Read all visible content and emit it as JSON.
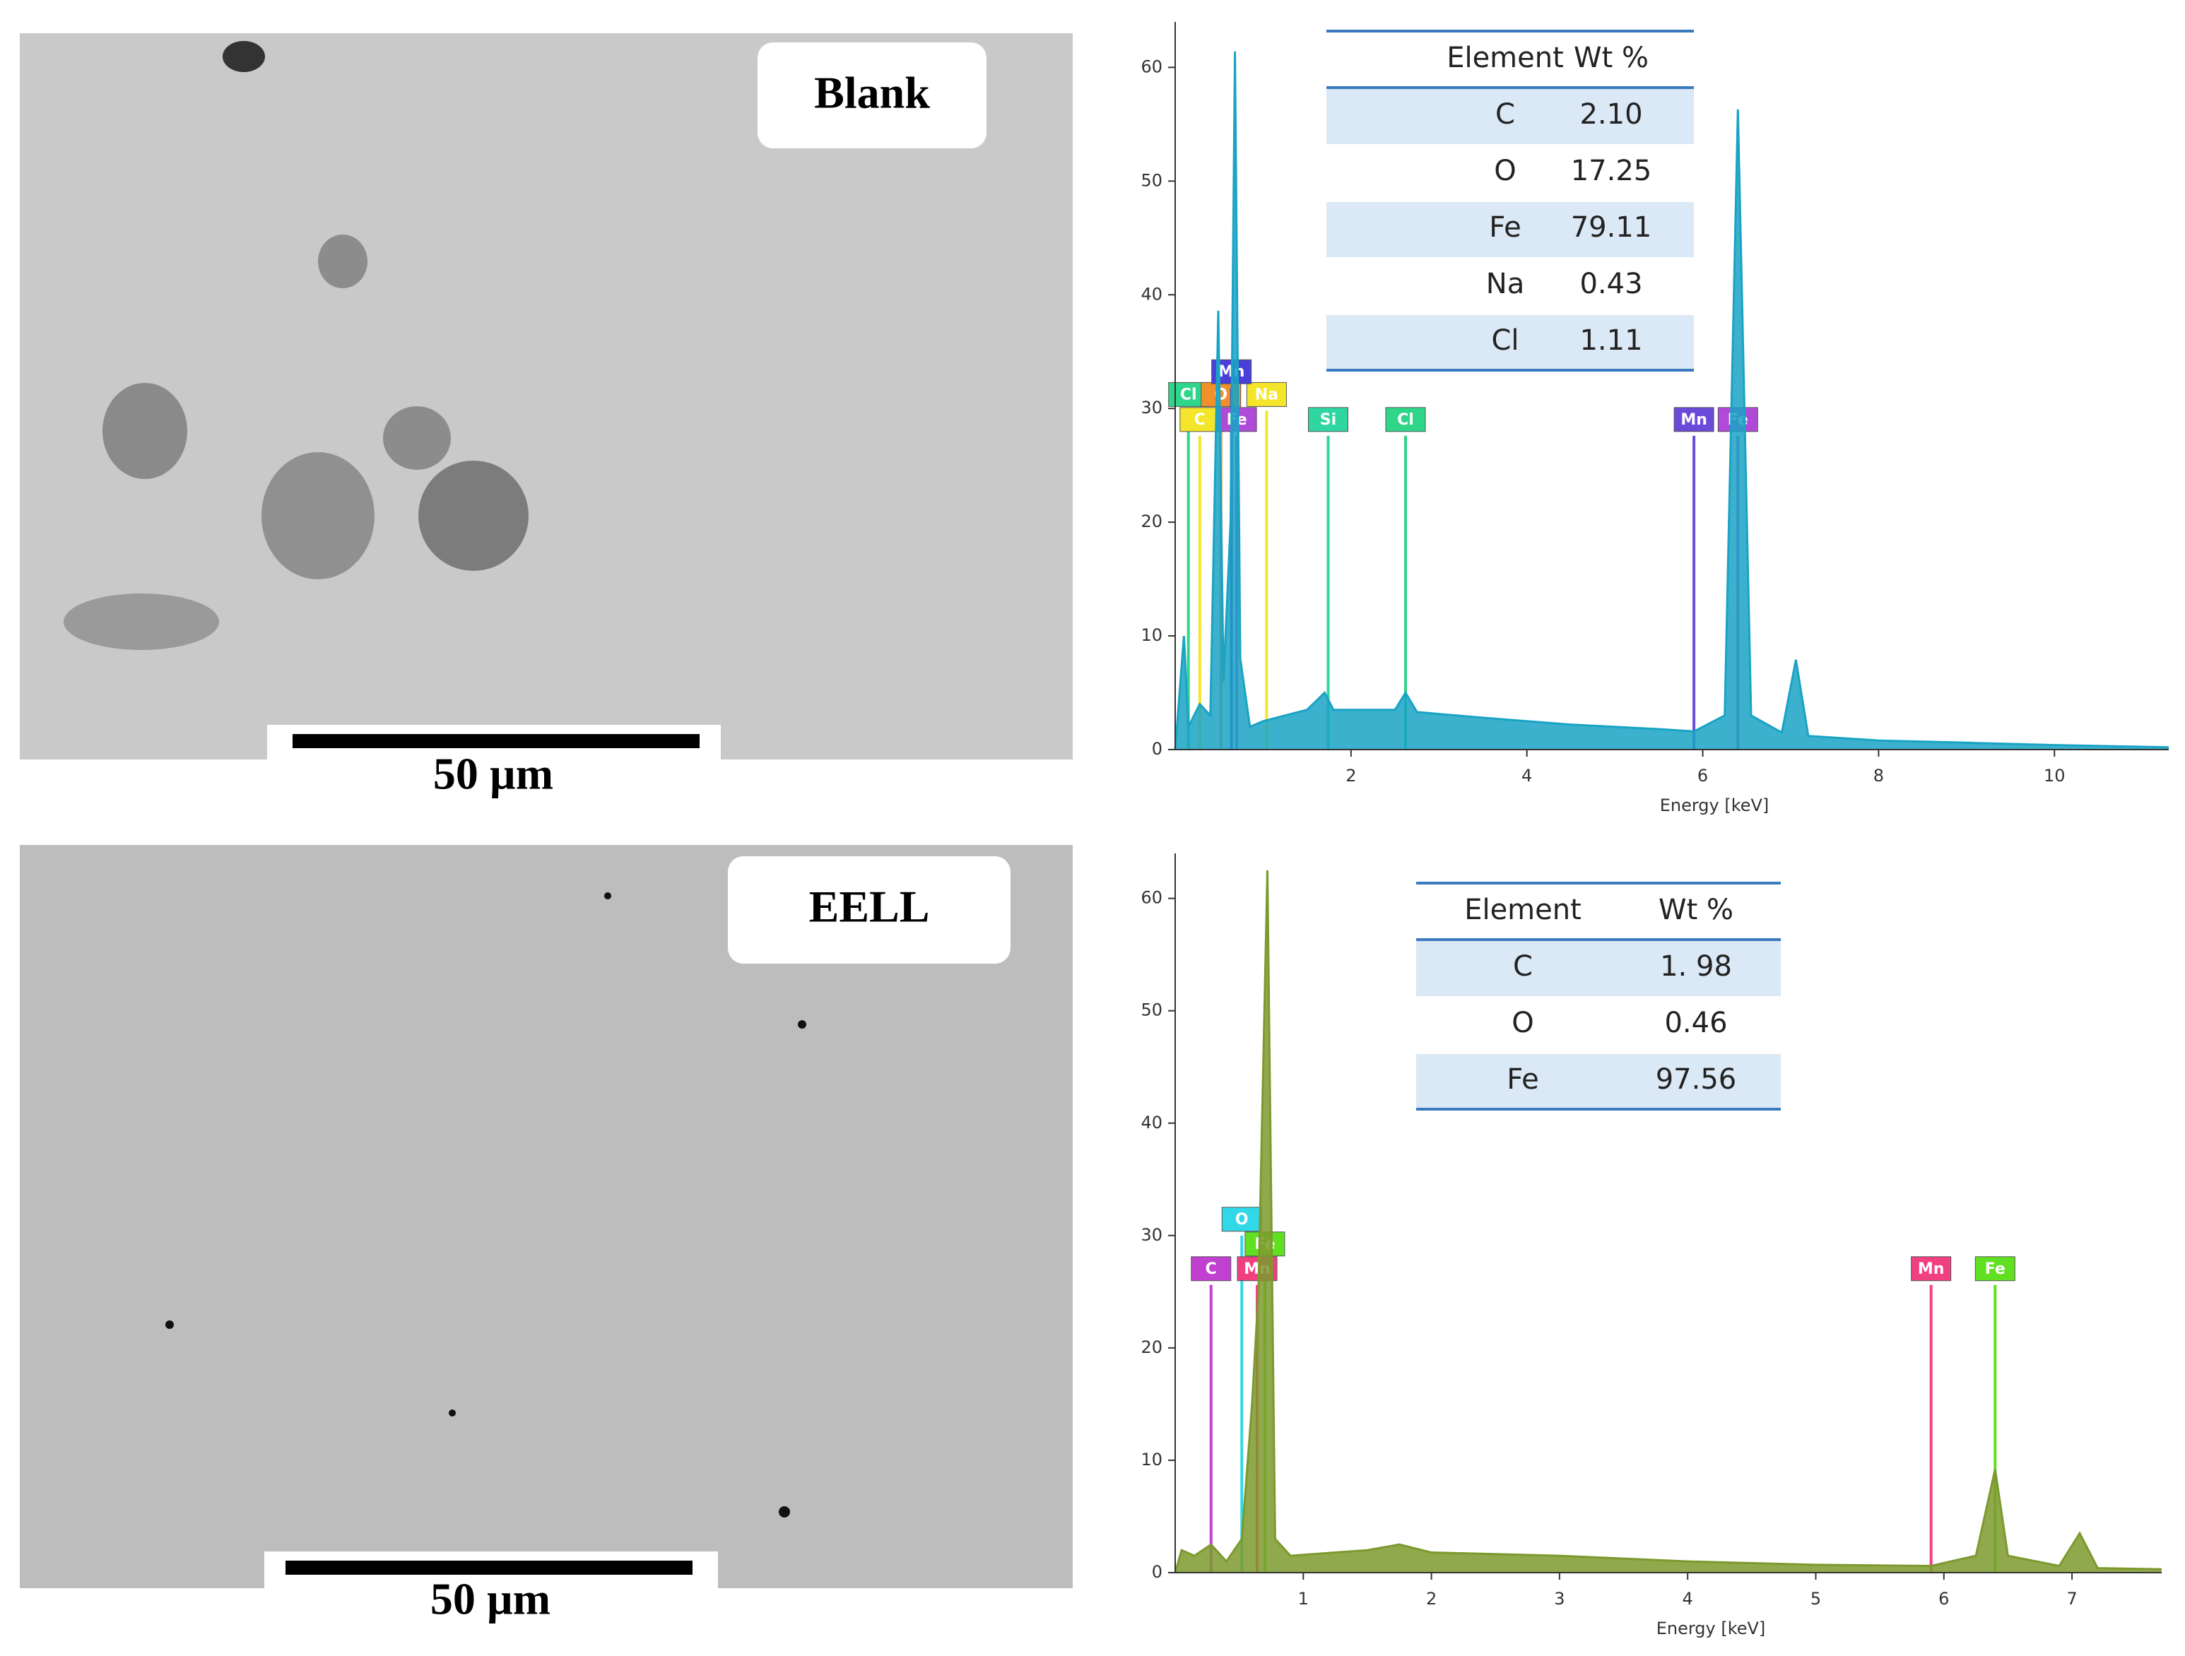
{
  "panels": [
    {
      "label": "Blank",
      "scale_bar": "50 µm"
    },
    {
      "label": "EELL",
      "scale_bar": "50 µm"
    }
  ],
  "chart_data": [
    {
      "type": "area",
      "xlabel": "Energy [keV]",
      "color": "#1aa3c4",
      "xlim": [
        0,
        11.3
      ],
      "xticks": [
        2,
        4,
        6,
        8,
        10
      ],
      "ylim": [
        0,
        64
      ],
      "yticks": [
        0,
        10,
        20,
        30,
        40,
        50,
        60
      ],
      "x": [
        0,
        0.1,
        0.15,
        0.28,
        0.4,
        0.49,
        0.55,
        0.63,
        0.68,
        0.74,
        0.85,
        1.0,
        1.5,
        1.7,
        1.8,
        2.5,
        2.62,
        2.75,
        3.5,
        4.5,
        5.5,
        5.9,
        6.25,
        6.4,
        6.55,
        6.9,
        7.06,
        7.2,
        8,
        9,
        10,
        11.3
      ],
      "values": [
        0,
        10,
        2,
        4,
        3,
        38.6,
        6,
        20,
        61.4,
        8,
        2,
        2.5,
        3.5,
        5,
        3.5,
        3.5,
        5,
        3.3,
        2.8,
        2.2,
        1.8,
        1.6,
        3,
        56.3,
        3,
        1.5,
        7.9,
        1.2,
        0.8,
        0.6,
        0.4,
        0.2
      ],
      "markers": [
        {
          "label": "Cl",
          "x": 0.15,
          "y": 29.8,
          "color": "#2fd68a"
        },
        {
          "label": "O",
          "x": 0.52,
          "y": 29.8,
          "color": "#f0902a"
        },
        {
          "label": "Na",
          "x": 1.04,
          "y": 29.8,
          "color": "#f5e52a"
        },
        {
          "label": "Mn",
          "x": 0.64,
          "y": 31.8,
          "color": "#4a3fd8"
        },
        {
          "label": "C",
          "x": 0.28,
          "y": 27.6,
          "color": "#f5e52a"
        },
        {
          "label": "Fe",
          "x": 0.7,
          "y": 27.6,
          "color": "#b04ad8"
        },
        {
          "label": "Si",
          "x": 1.74,
          "y": 27.6,
          "color": "#2fd6a0"
        },
        {
          "label": "Cl",
          "x": 2.62,
          "y": 27.6,
          "color": "#2fd68a"
        },
        {
          "label": "Mn",
          "x": 5.9,
          "y": 27.6,
          "color": "#6a4ad8"
        },
        {
          "label": "Fe",
          "x": 6.4,
          "y": 27.6,
          "color": "#b04ad8"
        }
      ],
      "table": {
        "header": [
          "Element",
          "Wt %"
        ],
        "rows": [
          [
            "C",
            "2.10"
          ],
          [
            "O",
            "17.25"
          ],
          [
            "Fe",
            "79.11"
          ],
          [
            "Na",
            "0.43"
          ],
          [
            "Cl",
            "1.11"
          ]
        ]
      }
    },
    {
      "type": "area",
      "xlabel": "Energy [keV]",
      "color": "#7c9a2e",
      "xlim": [
        0,
        7.7
      ],
      "xticks": [
        1,
        2,
        3,
        4,
        5,
        6,
        7
      ],
      "ylim": [
        0,
        64
      ],
      "yticks": [
        0,
        10,
        20,
        30,
        40,
        50,
        60
      ],
      "x": [
        0,
        0.05,
        0.15,
        0.28,
        0.4,
        0.52,
        0.6,
        0.65,
        0.72,
        0.78,
        0.9,
        1.5,
        1.75,
        2,
        3,
        4,
        5,
        5.9,
        6.25,
        6.4,
        6.5,
        6.9,
        7.06,
        7.2,
        7.7
      ],
      "values": [
        0,
        2,
        1.5,
        2.5,
        1,
        3,
        15,
        25,
        62.5,
        3,
        1.5,
        2,
        2.5,
        1.8,
        1.5,
        1,
        0.7,
        0.6,
        1.5,
        9.2,
        1.5,
        0.6,
        3.5,
        0.4,
        0.3
      ],
      "markers": [
        {
          "label": "C",
          "x": 0.28,
          "y": 25.6,
          "color": "#c040d0"
        },
        {
          "label": "O",
          "x": 0.52,
          "y": 30,
          "color": "#30d8e8"
        },
        {
          "label": "Fe",
          "x": 0.7,
          "y": 27.8,
          "color": "#60e020"
        },
        {
          "label": "Mn",
          "x": 0.64,
          "y": 25.6,
          "color": "#f04080"
        },
        {
          "label": "Mn",
          "x": 5.9,
          "y": 25.6,
          "color": "#f04080"
        },
        {
          "label": "Fe",
          "x": 6.4,
          "y": 25.6,
          "color": "#60e020"
        }
      ],
      "table": {
        "header": [
          "Element",
          "Wt %"
        ],
        "rows": [
          [
            "C",
            "1. 98"
          ],
          [
            "O",
            "0.46"
          ],
          [
            "Fe",
            "97.56"
          ]
        ]
      }
    }
  ]
}
